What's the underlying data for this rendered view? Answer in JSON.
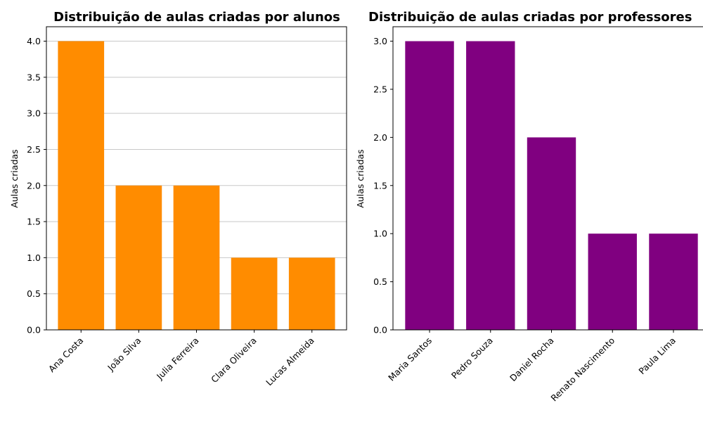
{
  "chart_data": [
    {
      "type": "bar",
      "title": "Distribuição de aulas criadas por alunos",
      "xlabel": "",
      "ylabel": "Aulas criadas",
      "categories": [
        "Ana Costa",
        "João Silva",
        "Julia Ferreira",
        "Clara Oliveira",
        "Lucas Almeida"
      ],
      "values": [
        4,
        2,
        2,
        1,
        1
      ],
      "ylim": [
        0,
        4.2
      ],
      "yticks": [
        "0.0",
        "0.5",
        "1.0",
        "1.5",
        "2.0",
        "2.5",
        "3.0",
        "3.5",
        "4.0"
      ],
      "color": "#ff8c00",
      "grid": "horizontal"
    },
    {
      "type": "bar",
      "title": "Distribuição de aulas criadas por professores",
      "xlabel": "",
      "ylabel": "Aulas criadas",
      "categories": [
        "Maria Santos",
        "Pedro Souza",
        "Daniel Rocha",
        "Renato Nascimento",
        "Paula Lima"
      ],
      "values": [
        3,
        3,
        2,
        1,
        1
      ],
      "ylim": [
        0,
        3.15
      ],
      "yticks": [
        "0.0",
        "0.5",
        "1.0",
        "1.5",
        "2.0",
        "2.5",
        "3.0"
      ],
      "color": "#800080",
      "grid": "off"
    }
  ]
}
